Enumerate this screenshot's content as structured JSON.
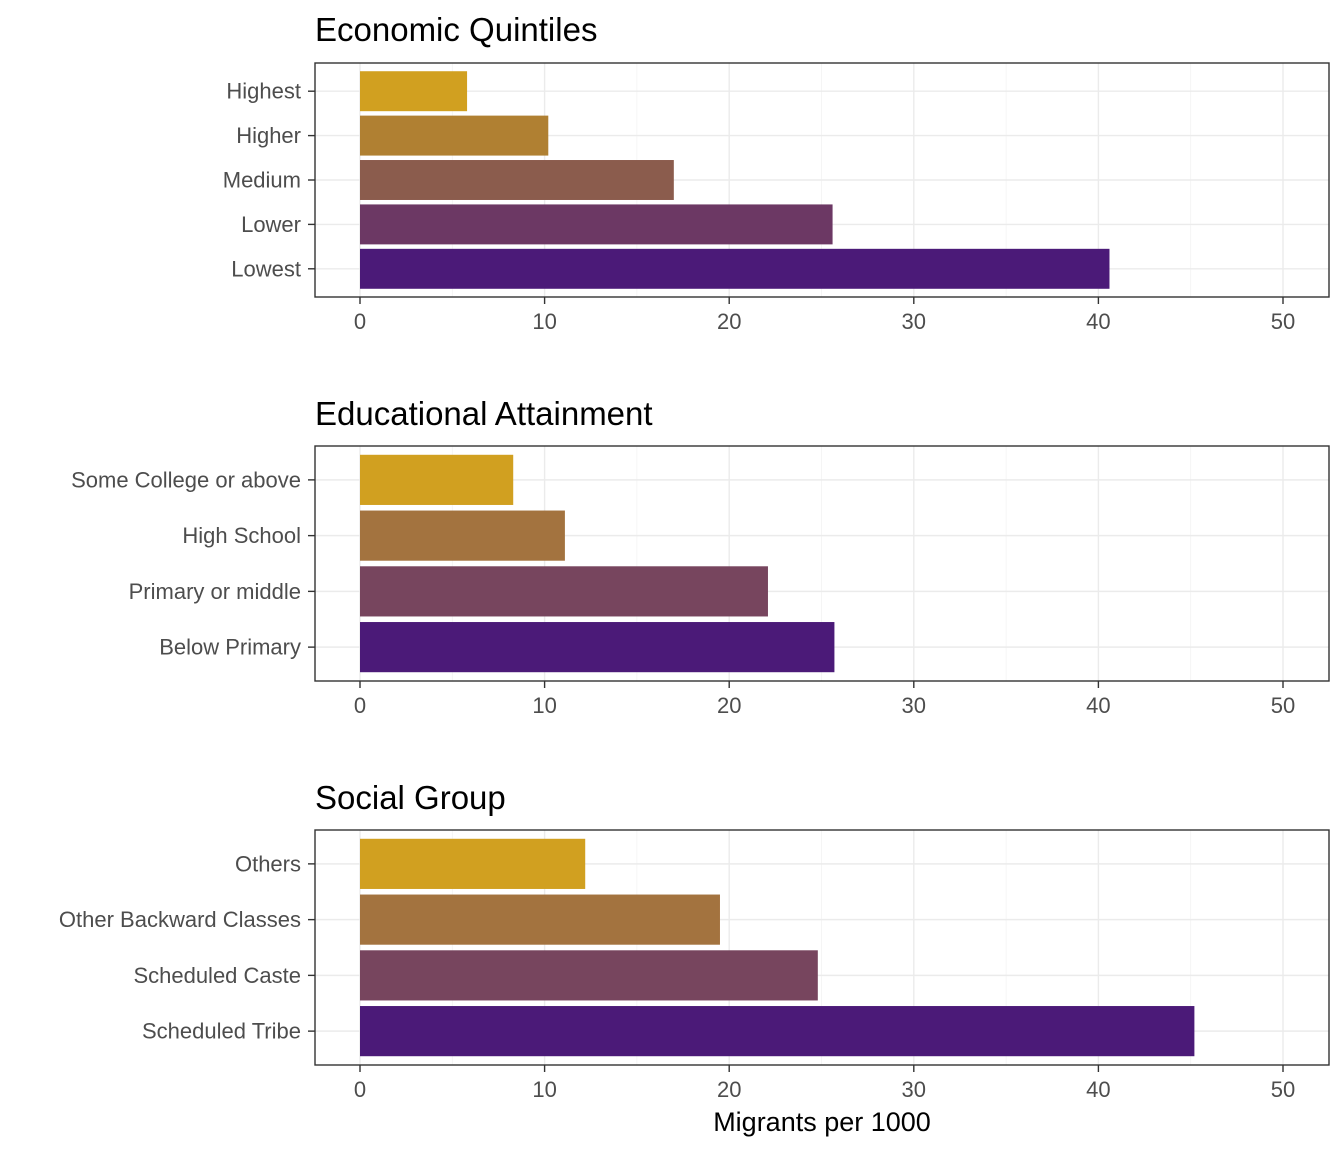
{
  "chart_data": [
    {
      "type": "bar",
      "orientation": "horizontal",
      "title": "Economic Quintiles",
      "categories": [
        "Highest",
        "Higher",
        "Medium",
        "Lower",
        "Lowest"
      ],
      "values": [
        5.8,
        10.2,
        17.0,
        25.6,
        40.6
      ],
      "colors": [
        "#d1a020",
        "#b08032",
        "#8b5c4d",
        "#6c3864",
        "#4b1a78"
      ],
      "xlabel": "",
      "ylabel": "",
      "xlim": [
        0,
        50
      ],
      "xticks": [
        0,
        10,
        20,
        30,
        40,
        50
      ],
      "grid": true
    },
    {
      "type": "bar",
      "orientation": "horizontal",
      "title": "Educational Attainment",
      "categories": [
        "Some College or above",
        "High School",
        "Primary or middle",
        "Below Primary"
      ],
      "values": [
        8.3,
        11.1,
        22.1,
        25.7
      ],
      "colors": [
        "#d1a020",
        "#a3733f",
        "#77455e",
        "#4b1a78"
      ],
      "xlabel": "",
      "ylabel": "",
      "xlim": [
        0,
        50
      ],
      "xticks": [
        0,
        10,
        20,
        30,
        40,
        50
      ],
      "grid": true
    },
    {
      "type": "bar",
      "orientation": "horizontal",
      "title": "Social Group",
      "categories": [
        "Others",
        "Other Backward Classes",
        "Scheduled Caste",
        "Scheduled Tribe"
      ],
      "values": [
        12.2,
        19.5,
        24.8,
        45.2
      ],
      "colors": [
        "#d1a020",
        "#a3733f",
        "#77455e",
        "#4b1a78"
      ],
      "xlabel": "Migrants per 1000",
      "ylabel": "",
      "xlim": [
        0,
        50
      ],
      "xticks": [
        0,
        10,
        20,
        30,
        40,
        50
      ],
      "grid": true
    }
  ]
}
